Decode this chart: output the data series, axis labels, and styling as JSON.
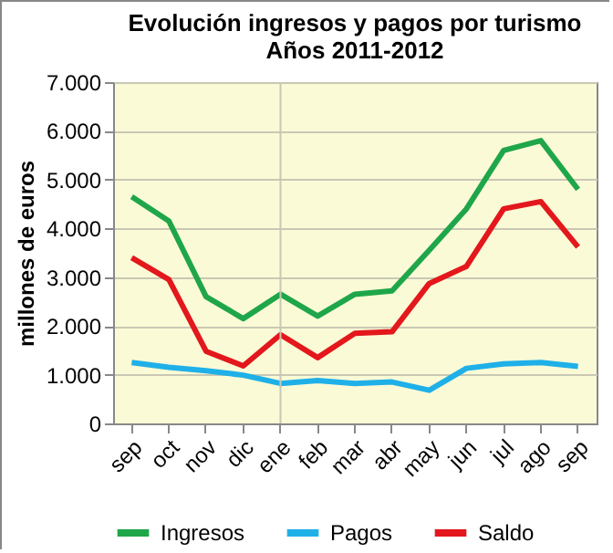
{
  "chart_data": {
    "type": "line",
    "title": "Evolución ingresos  y pagos por turismo\nAños 2011-2012",
    "ylabel": "millones de euros",
    "categories": [
      "sep",
      "oct",
      "nov",
      "dic",
      "ene",
      "feb",
      "mar",
      "abr",
      "may",
      "jun",
      "jul",
      "ago",
      "sep"
    ],
    "series": [
      {
        "name": "Ingresos",
        "color": "#1fa64a",
        "values": [
          4650,
          4150,
          2600,
          2150,
          2650,
          2200,
          2650,
          2720,
          3550,
          4400,
          5600,
          5800,
          4800
        ]
      },
      {
        "name": "Pagos",
        "color": "#1fb0e8",
        "values": [
          1250,
          1150,
          1080,
          990,
          820,
          880,
          820,
          850,
          680,
          1130,
          1220,
          1250,
          1170
        ]
      },
      {
        "name": "Saldo",
        "color": "#e3171c",
        "values": [
          3400,
          2950,
          1480,
          1180,
          1820,
          1350,
          1850,
          1880,
          2870,
          3220,
          4400,
          4550,
          3620
        ]
      }
    ],
    "ylim": [
      0,
      7000
    ],
    "yticks": [
      0,
      {
        "value": 1000,
        "label": "1.000"
      },
      {
        "value": 2000,
        "label": "2.000"
      },
      {
        "value": 3000,
        "label": "3.000"
      },
      {
        "value": 4000,
        "label": "4.000"
      },
      {
        "value": 5000,
        "label": "5.000"
      },
      {
        "value": 6000,
        "label": "6.000"
      },
      {
        "value": 7000,
        "label": "7.000"
      }
    ],
    "ref_lines": [
      {
        "axis": "x",
        "value": "ene",
        "color": "#c8c8b4"
      }
    ],
    "grid": "y",
    "legend": "bottom",
    "marker": "none",
    "line_style": "solid"
  }
}
